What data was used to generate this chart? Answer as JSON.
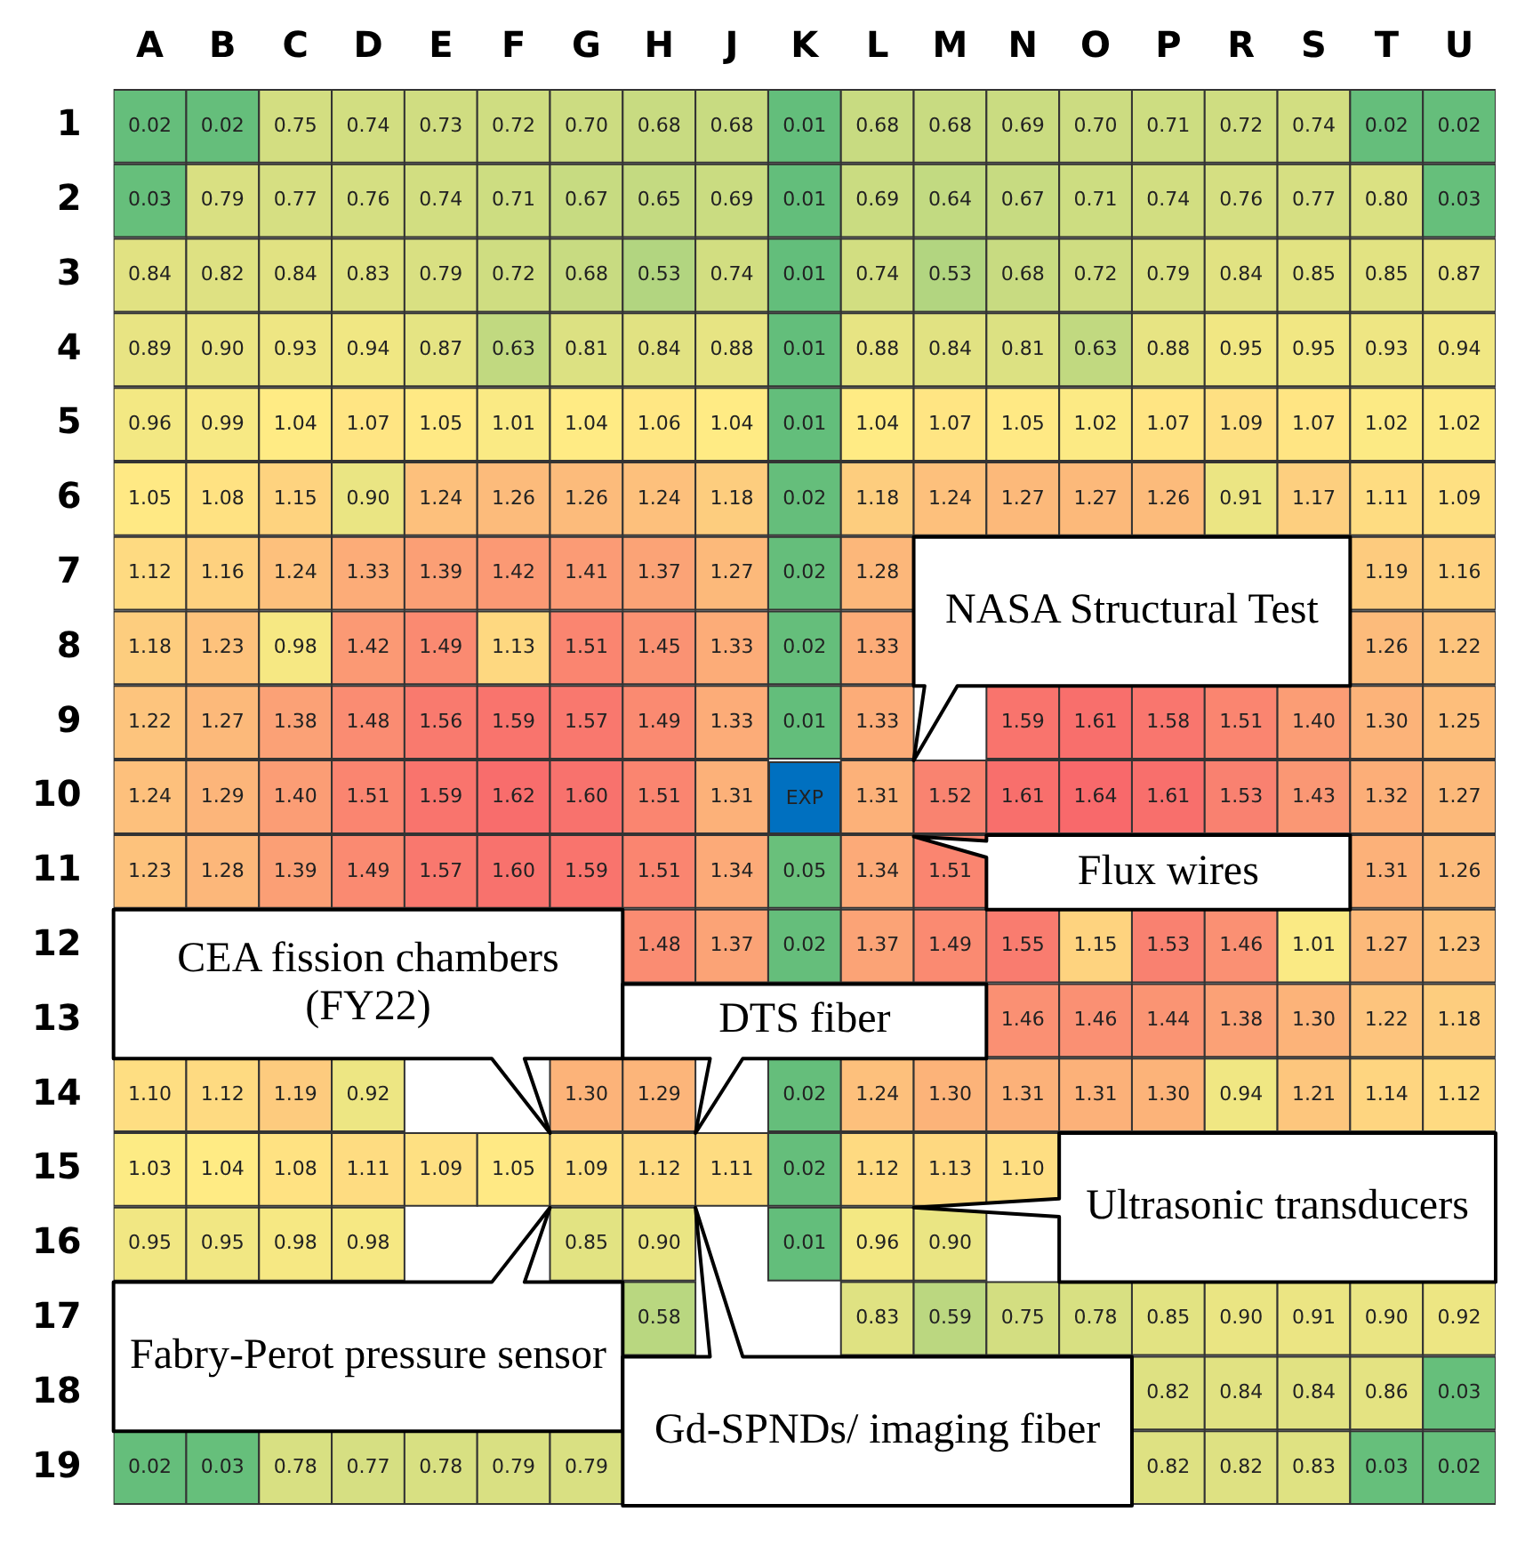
{
  "chart_data": {
    "type": "heatmap",
    "categories": [
      "A",
      "B",
      "C",
      "D",
      "E",
      "F",
      "G",
      "H",
      "J",
      "K",
      "L",
      "M",
      "N",
      "O",
      "P",
      "R",
      "S",
      "T",
      "U"
    ],
    "y_categories": [
      "1",
      "2",
      "3",
      "4",
      "5",
      "6",
      "7",
      "8",
      "9",
      "10",
      "11",
      "12",
      "13",
      "14",
      "15",
      "16",
      "17",
      "18",
      "19"
    ],
    "cells": [
      [
        0.02,
        0.02,
        0.75,
        0.74,
        0.73,
        0.72,
        0.7,
        0.68,
        0.68,
        0.01,
        0.68,
        0.68,
        0.69,
        0.7,
        0.71,
        0.72,
        0.74,
        0.02,
        0.02
      ],
      [
        0.03,
        0.79,
        0.77,
        0.76,
        0.74,
        0.71,
        0.67,
        0.65,
        0.69,
        0.01,
        0.69,
        0.64,
        0.67,
        0.71,
        0.74,
        0.76,
        0.77,
        0.8,
        0.03
      ],
      [
        0.84,
        0.82,
        0.84,
        0.83,
        0.79,
        0.72,
        0.68,
        0.53,
        0.74,
        0.01,
        0.74,
        0.53,
        0.68,
        0.72,
        0.79,
        0.84,
        0.85,
        0.85,
        0.87
      ],
      [
        0.89,
        0.9,
        0.93,
        0.94,
        0.87,
        0.63,
        0.81,
        0.84,
        0.88,
        0.01,
        0.88,
        0.84,
        0.81,
        0.63,
        0.88,
        0.95,
        0.95,
        0.93,
        0.94
      ],
      [
        0.96,
        0.99,
        1.04,
        1.07,
        1.05,
        1.01,
        1.04,
        1.06,
        1.04,
        0.01,
        1.04,
        1.07,
        1.05,
        1.02,
        1.07,
        1.09,
        1.07,
        1.02,
        1.02
      ],
      [
        1.05,
        1.08,
        1.15,
        0.9,
        1.24,
        1.26,
        1.26,
        1.24,
        1.18,
        0.02,
        1.18,
        1.24,
        1.27,
        1.27,
        1.26,
        0.91,
        1.17,
        1.11,
        1.09
      ],
      [
        1.12,
        1.16,
        1.24,
        1.33,
        1.39,
        1.42,
        1.41,
        1.37,
        1.27,
        0.02,
        1.28,
        null,
        null,
        null,
        null,
        null,
        null,
        1.19,
        1.16
      ],
      [
        1.18,
        1.23,
        0.98,
        1.42,
        1.49,
        1.13,
        1.51,
        1.45,
        1.33,
        0.02,
        1.33,
        null,
        null,
        null,
        null,
        null,
        null,
        1.26,
        1.22
      ],
      [
        1.22,
        1.27,
        1.38,
        1.48,
        1.56,
        1.59,
        1.57,
        1.49,
        1.33,
        0.01,
        1.33,
        null,
        1.59,
        1.61,
        1.58,
        1.51,
        1.4,
        1.3,
        1.25
      ],
      [
        1.24,
        1.29,
        1.4,
        1.51,
        1.59,
        1.62,
        1.6,
        1.51,
        1.31,
        null,
        1.31,
        1.52,
        1.61,
        1.64,
        1.61,
        1.53,
        1.43,
        1.32,
        1.27
      ],
      [
        1.23,
        1.28,
        1.39,
        1.49,
        1.57,
        1.6,
        1.59,
        1.51,
        1.34,
        0.05,
        1.34,
        1.51,
        null,
        null,
        null,
        null,
        null,
        1.31,
        1.26
      ],
      [
        null,
        null,
        null,
        null,
        null,
        null,
        null,
        1.48,
        1.37,
        0.02,
        1.37,
        1.49,
        1.55,
        1.15,
        1.53,
        1.46,
        1.01,
        1.27,
        1.23
      ],
      [
        null,
        null,
        null,
        null,
        null,
        null,
        null,
        null,
        null,
        null,
        null,
        null,
        1.46,
        1.46,
        1.44,
        1.38,
        1.3,
        1.22,
        1.18
      ],
      [
        1.1,
        1.12,
        1.19,
        0.92,
        null,
        null,
        1.3,
        1.29,
        null,
        0.02,
        1.24,
        1.3,
        1.31,
        1.31,
        1.3,
        0.94,
        1.21,
        1.14,
        1.12
      ],
      [
        1.03,
        1.04,
        1.08,
        1.11,
        1.09,
        1.05,
        1.09,
        1.12,
        1.11,
        0.02,
        1.12,
        1.13,
        1.1,
        null,
        null,
        null,
        null,
        null,
        null
      ],
      [
        0.95,
        0.95,
        0.98,
        0.98,
        null,
        null,
        0.85,
        0.9,
        null,
        0.01,
        0.96,
        0.9,
        null,
        null,
        null,
        null,
        null,
        null,
        null
      ],
      [
        null,
        null,
        null,
        null,
        null,
        null,
        null,
        0.58,
        null,
        null,
        0.83,
        0.59,
        0.75,
        0.78,
        0.85,
        0.9,
        0.91,
        0.9,
        0.92
      ],
      [
        null,
        null,
        null,
        null,
        null,
        null,
        null,
        null,
        null,
        null,
        null,
        null,
        null,
        null,
        0.82,
        0.84,
        0.84,
        0.86,
        0.03
      ],
      [
        0.02,
        0.03,
        0.78,
        0.77,
        0.78,
        0.79,
        0.79,
        null,
        null,
        null,
        null,
        null,
        null,
        null,
        0.82,
        0.82,
        0.83,
        0.03,
        0.02
      ]
    ],
    "cell_labels": [
      [
        "0.02",
        "0.02",
        "0.75",
        "0.74",
        "0.73",
        "0.72",
        "0.70",
        "0.68",
        "0.68",
        "0.01",
        "0.68",
        "0.68",
        "0.69",
        "0.70",
        "0.71",
        "0.72",
        "0.74",
        "0.02",
        "0.02"
      ],
      [
        "0.03",
        "0.79",
        "0.77",
        "0.76",
        "0.74",
        "0.71",
        "0.67",
        "0.65",
        "0.69",
        "0.01",
        "0.69",
        "0.64",
        "0.67",
        "0.71",
        "0.74",
        "0.76",
        "0.77",
        "0.80",
        "0.03"
      ],
      [
        "0.84",
        "0.82",
        "0.84",
        "0.83",
        "0.79",
        "0.72",
        "0.68",
        "0.53",
        "0.74",
        "0.01",
        "0.74",
        "0.53",
        "0.68",
        "0.72",
        "0.79",
        "0.84",
        "0.85",
        "0.85",
        "0.87"
      ],
      [
        "0.89",
        "0.90",
        "0.93",
        "0.94",
        "0.87",
        "0.63",
        "0.81",
        "0.84",
        "0.88",
        "0.01",
        "0.88",
        "0.84",
        "0.81",
        "0.63",
        "0.88",
        "0.95",
        "0.95",
        "0.93",
        "0.94"
      ],
      [
        "0.96",
        "0.99",
        "1.04",
        "1.07",
        "1.05",
        "1.01",
        "1.04",
        "1.06",
        "1.04",
        "0.01",
        "1.04",
        "1.07",
        "1.05",
        "1.02",
        "1.07",
        "1.09",
        "1.07",
        "1.02",
        "1.02"
      ],
      [
        "1.05",
        "1.08",
        "1.15",
        "0.90",
        "1.24",
        "1.26",
        "1.26",
        "1.24",
        "1.18",
        "0.02",
        "1.18",
        "1.24",
        "1.27",
        "1.27",
        "1.26",
        "0.91",
        "1.17",
        "1.11",
        "1.09"
      ],
      [
        "1.12",
        "1.16",
        "1.24",
        "1.33",
        "1.39",
        "1.42",
        "1.41",
        "1.37",
        "1.27",
        "0.02",
        "1.28",
        null,
        null,
        null,
        null,
        null,
        null,
        "1.19",
        "1.16"
      ],
      [
        "1.18",
        "1.23",
        "0.98",
        "1.42",
        "1.49",
        "1.13",
        "1.51",
        "1.45",
        "1.33",
        "0.02",
        "1.33",
        null,
        null,
        null,
        null,
        null,
        null,
        "1.26",
        "1.22"
      ],
      [
        "1.22",
        "1.27",
        "1.38",
        "1.48",
        "1.56",
        "1.59",
        "1.57",
        "1.49",
        "1.33",
        "0.01",
        "1.33",
        null,
        "1.59",
        "1.61",
        "1.58",
        "1.51",
        "1.40",
        "1.30",
        "1.25"
      ],
      [
        "1.24",
        "1.29",
        "1.40",
        "1.51",
        "1.59",
        "1.62",
        "1.60",
        "1.51",
        "1.31",
        "EXP",
        "1.31",
        "1.52",
        "1.61",
        "1.64",
        "1.61",
        "1.53",
        "1.43",
        "1.32",
        "1.27"
      ],
      [
        "1.23",
        "1.28",
        "1.39",
        "1.49",
        "1.57",
        "1.60",
        "1.59",
        "1.51",
        "1.34",
        "0.05",
        "1.34",
        "1.51",
        null,
        null,
        null,
        null,
        null,
        "1.31",
        "1.26"
      ],
      [
        null,
        null,
        null,
        null,
        null,
        null,
        null,
        "1.48",
        "1.37",
        "0.02",
        "1.37",
        "1.49",
        "1.55",
        "1.15",
        "1.53",
        "1.46",
        "1.01",
        "1.27",
        "1.23"
      ],
      [
        null,
        null,
        null,
        null,
        null,
        null,
        null,
        null,
        null,
        null,
        null,
        null,
        "1.46",
        "1.46",
        "1.44",
        "1.38",
        "1.30",
        "1.22",
        "1.18"
      ],
      [
        "1.10",
        "1.12",
        "1.19",
        "0.92",
        null,
        null,
        "1.30",
        "1.29",
        null,
        "0.02",
        "1.24",
        "1.30",
        "1.31",
        "1.31",
        "1.30",
        "0.94",
        "1.21",
        "1.14",
        "1.12"
      ],
      [
        "1.03",
        "1.04",
        "1.08",
        "1.11",
        "1.09",
        "1.05",
        "1.09",
        "1.12",
        "1.11",
        "0.02",
        "1.12",
        "1.13",
        "1.10",
        null,
        null,
        null,
        null,
        null,
        null
      ],
      [
        "0.95",
        "0.95",
        "0.98",
        "0.98",
        null,
        null,
        "0.85",
        "0.90",
        null,
        "0.01",
        "0.96",
        "0.90",
        null,
        null,
        null,
        null,
        null,
        null,
        null
      ],
      [
        null,
        null,
        null,
        null,
        null,
        null,
        null,
        "0.58",
        null,
        null,
        "0.83",
        "0.59",
        "0.75",
        "0.78",
        "0.85",
        "0.90",
        "0.91",
        "0.90",
        "0.92"
      ],
      [
        null,
        null,
        null,
        null,
        null,
        null,
        null,
        null,
        null,
        null,
        null,
        null,
        null,
        null,
        "0.82",
        "0.84",
        "0.84",
        "0.86",
        "0.03"
      ],
      [
        "0.02",
        "0.03",
        "0.78",
        "0.77",
        "0.78",
        "0.79",
        "0.79",
        null,
        null,
        null,
        null,
        null,
        null,
        null,
        "0.82",
        "0.82",
        "0.83",
        "0.03",
        "0.02"
      ]
    ],
    "colors": [
      "#63be7b",
      "#ffeb84",
      "#f8696b"
    ],
    "color": "#0070c0",
    "annotations": [
      "NASA Structural Test",
      "Flux wires",
      "CEA fission chambers (FY22)",
      "DTS fiber",
      "Fabry-Perot pressure sensor",
      "Gd-SPNDs/ imaging fiber",
      "Ultrasonic transducers"
    ]
  }
}
